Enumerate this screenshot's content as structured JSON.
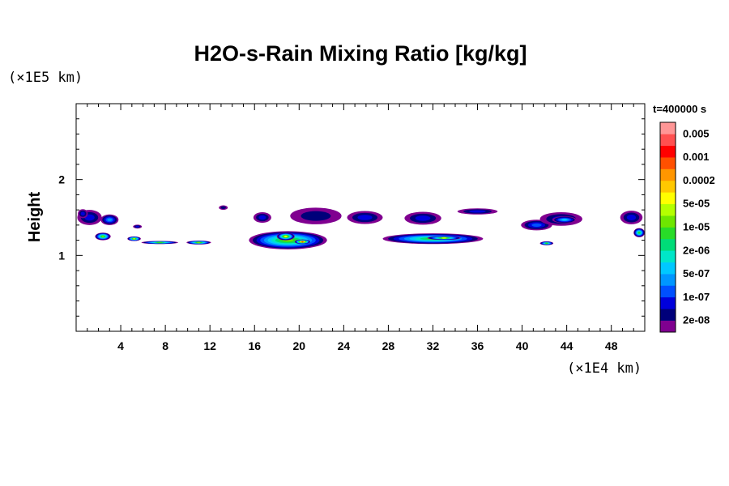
{
  "chart_data": {
    "type": "heatmap",
    "title": "H2O-s-Rain Mixing Ratio [kg/kg]",
    "ylabel": "Height",
    "xlabel": "",
    "x_scale_label": "(×1E4 km)",
    "y_scale_label": "(×1E5 km)",
    "time_label": "t=400000 s",
    "xlim": [
      0,
      51
    ],
    "ylim": [
      0,
      3
    ],
    "x_ticks": [
      4,
      8,
      12,
      16,
      20,
      24,
      28,
      32,
      36,
      40,
      44,
      48
    ],
    "y_ticks": [
      1,
      2
    ],
    "x_minor_step": 1,
    "y_minor_step": 0.2,
    "colorbar": {
      "colors": [
        "#800090",
        "#00007a",
        "#0000dc",
        "#0050ff",
        "#0096ff",
        "#00c8ff",
        "#00e6c8",
        "#00dc78",
        "#28dc28",
        "#6ee600",
        "#b4ff00",
        "#ffff00",
        "#ffc800",
        "#ff9600",
        "#ff5000",
        "#ff0000",
        "#ff5050",
        "#ff9696"
      ],
      "labels": [
        "2e-08",
        "1e-07",
        "5e-07",
        "2e-06",
        "1e-05",
        "5e-05",
        "0.0002",
        "0.001",
        "0.005"
      ]
    },
    "features": [
      {
        "kind": "cloud",
        "x": 1.2,
        "y": 1.5,
        "w": 2.2,
        "h": 0.2,
        "level": 2
      },
      {
        "kind": "cloud",
        "x": 3.0,
        "y": 1.47,
        "w": 1.6,
        "h": 0.14,
        "level": 4
      },
      {
        "kind": "cloud",
        "x": 5.5,
        "y": 1.38,
        "w": 0.8,
        "h": 0.05,
        "level": 2
      },
      {
        "kind": "cloud",
        "x": 2.4,
        "y": 1.25,
        "w": 1.4,
        "h": 0.1,
        "level": 9
      },
      {
        "kind": "cloud",
        "x": 5.2,
        "y": 1.22,
        "w": 1.2,
        "h": 0.06,
        "level": 10
      },
      {
        "kind": "cloud",
        "x": 7.5,
        "y": 1.17,
        "w": 3.3,
        "h": 0.04,
        "level": 8
      },
      {
        "kind": "cloud",
        "x": 11.0,
        "y": 1.17,
        "w": 2.2,
        "h": 0.05,
        "level": 9
      },
      {
        "kind": "cloud",
        "x": 13.2,
        "y": 1.63,
        "w": 0.8,
        "h": 0.06,
        "level": 1
      },
      {
        "kind": "cloud",
        "x": 16.7,
        "y": 1.5,
        "w": 1.6,
        "h": 0.14,
        "level": 2
      },
      {
        "kind": "cloud",
        "x": 19.0,
        "y": 1.2,
        "w": 7.0,
        "h": 0.24,
        "level": 9
      },
      {
        "kind": "cloud",
        "x": 18.8,
        "y": 1.25,
        "w": 1.6,
        "h": 0.1,
        "level": 11
      },
      {
        "kind": "cloud",
        "x": 20.3,
        "y": 1.18,
        "w": 1.4,
        "h": 0.06,
        "level": 14
      },
      {
        "kind": "cloud",
        "x": 21.5,
        "y": 1.52,
        "w": 4.6,
        "h": 0.22,
        "level": 1
      },
      {
        "kind": "cloud",
        "x": 25.9,
        "y": 1.5,
        "w": 3.2,
        "h": 0.17,
        "level": 2
      },
      {
        "kind": "cloud",
        "x": 31.1,
        "y": 1.49,
        "w": 3.3,
        "h": 0.17,
        "level": 2
      },
      {
        "kind": "cloud",
        "x": 32.0,
        "y": 1.22,
        "w": 9.0,
        "h": 0.14,
        "level": 8
      },
      {
        "kind": "cloud",
        "x": 33.0,
        "y": 1.23,
        "w": 3.0,
        "h": 0.05,
        "level": 10
      },
      {
        "kind": "cloud",
        "x": 36.0,
        "y": 1.58,
        "w": 3.6,
        "h": 0.08,
        "level": 2
      },
      {
        "kind": "cloud",
        "x": 41.3,
        "y": 1.4,
        "w": 2.8,
        "h": 0.14,
        "level": 3
      },
      {
        "kind": "cloud",
        "x": 43.5,
        "y": 1.48,
        "w": 3.8,
        "h": 0.18,
        "level": 2
      },
      {
        "kind": "cloud",
        "x": 43.8,
        "y": 1.47,
        "w": 2.2,
        "h": 0.09,
        "level": 5
      },
      {
        "kind": "cloud",
        "x": 42.2,
        "y": 1.16,
        "w": 1.2,
        "h": 0.05,
        "level": 8
      },
      {
        "kind": "cloud",
        "x": 49.8,
        "y": 1.5,
        "w": 2.0,
        "h": 0.18,
        "level": 2
      },
      {
        "kind": "cloud",
        "x": 50.5,
        "y": 1.3,
        "w": 1.0,
        "h": 0.12,
        "level": 8
      },
      {
        "kind": "cloud",
        "x": 0.6,
        "y": 1.55,
        "w": 0.9,
        "h": 0.12,
        "level": 2
      }
    ]
  }
}
